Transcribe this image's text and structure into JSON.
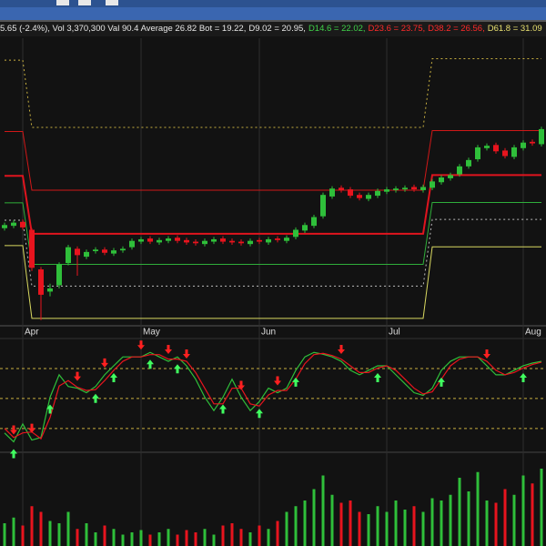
{
  "header": {
    "segments": [
      {
        "text": "5.65 (-2.4%), Vol 3,370,300 Val 90.4 Average 26.82 Bot = 19.22,",
        "color": "#e6e6e6"
      },
      {
        "text": "D9.02 = 20.95,",
        "color": "#e6e6e6"
      },
      {
        "text": "D14.6 = 22.02,",
        "color": "#3fd24a"
      },
      {
        "text": "D23.6 = 23.75,",
        "color": "#ff2a2a"
      },
      {
        "text": "D38.2 = 26.56,",
        "color": "#ff2a2a"
      },
      {
        "text": "D61.8 = 31.09",
        "color": "#e8e070"
      }
    ]
  },
  "chart_data": [
    {
      "type": "candlestick",
      "categories": [
        null,
        null,
        "Apr",
        null,
        null,
        null,
        null,
        null,
        null,
        null,
        null,
        null,
        null,
        null,
        null,
        "May",
        null,
        null,
        null,
        null,
        null,
        null,
        null,
        null,
        null,
        null,
        null,
        null,
        "Jun",
        null,
        null,
        null,
        null,
        null,
        null,
        null,
        null,
        null,
        null,
        null,
        null,
        null,
        "Jul",
        null,
        null,
        null,
        null,
        null,
        null,
        null,
        null,
        null,
        null,
        null,
        null,
        null,
        null,
        "Aug",
        null,
        null
      ],
      "open": [
        20.4,
        20.55,
        20.8,
        20.3,
        17.8,
        16.4,
        16.8,
        18.2,
        19.1,
        18.6,
        18.95,
        19.05,
        18.8,
        19.0,
        19.2,
        19.55,
        19.75,
        19.5,
        19.6,
        19.8,
        19.65,
        19.55,
        19.4,
        19.55,
        19.75,
        19.6,
        19.55,
        19.4,
        19.65,
        19.5,
        19.75,
        19.6,
        19.85,
        20.25,
        20.55,
        21.15,
        22.4,
        22.95,
        22.85,
        22.5,
        22.25,
        22.45,
        22.7,
        22.8,
        22.85,
        23.0,
        22.8,
        22.95,
        23.3,
        23.55,
        23.8,
        24.3,
        24.75,
        25.45,
        25.65,
        25.3,
        24.9,
        25.45,
        25.85,
        25.7
      ],
      "high": [
        20.75,
        20.9,
        20.95,
        20.4,
        17.95,
        16.9,
        18.25,
        19.35,
        19.25,
        19.05,
        19.2,
        19.2,
        19.15,
        19.25,
        19.75,
        19.85,
        19.9,
        19.8,
        19.9,
        19.95,
        19.8,
        19.7,
        19.75,
        19.85,
        19.9,
        19.75,
        19.7,
        19.75,
        19.8,
        19.85,
        19.9,
        19.95,
        20.45,
        20.75,
        21.25,
        22.65,
        23.05,
        23.1,
        23.0,
        22.65,
        22.65,
        22.9,
        23.0,
        23.05,
        23.1,
        23.15,
        23.15,
        23.5,
        23.75,
        23.9,
        24.45,
        24.85,
        25.65,
        25.75,
        25.8,
        25.45,
        25.65,
        25.95,
        26.0,
        26.8
      ],
      "low": [
        20.25,
        20.4,
        20.3,
        17.7,
        14.6,
        16.1,
        16.6,
        18.05,
        17.4,
        18.45,
        18.8,
        18.7,
        18.65,
        18.85,
        19.05,
        19.4,
        19.4,
        19.35,
        19.45,
        19.45,
        19.35,
        19.3,
        19.25,
        19.4,
        19.4,
        19.35,
        19.3,
        19.25,
        19.4,
        19.35,
        19.5,
        19.45,
        19.7,
        20.1,
        20.4,
        21.0,
        22.25,
        22.65,
        22.3,
        22.15,
        22.1,
        22.3,
        22.55,
        22.65,
        22.7,
        22.7,
        22.65,
        22.8,
        23.15,
        23.4,
        23.65,
        24.15,
        24.6,
        25.3,
        25.1,
        24.8,
        24.75,
        25.3,
        25.6,
        25.55
      ],
      "close": [
        20.6,
        20.75,
        20.45,
        17.9,
        16.2,
        16.6,
        18.1,
        19.2,
        18.7,
        18.9,
        19.05,
        18.85,
        19.0,
        19.1,
        19.6,
        19.7,
        19.55,
        19.65,
        19.75,
        19.6,
        19.5,
        19.45,
        19.6,
        19.7,
        19.55,
        19.5,
        19.45,
        19.6,
        19.55,
        19.7,
        19.65,
        19.8,
        20.3,
        20.6,
        21.1,
        22.5,
        22.9,
        22.8,
        22.45,
        22.3,
        22.5,
        22.75,
        22.85,
        22.9,
        22.95,
        22.85,
        23.0,
        23.35,
        23.6,
        23.75,
        24.3,
        24.7,
        25.5,
        25.6,
        25.25,
        24.95,
        25.5,
        25.8,
        25.75,
        26.65
      ],
      "up_color": "#2fbf3a",
      "down_color": "#e8141e",
      "ylim": [
        14.3,
        32.5
      ],
      "bands": [
        {
          "color": "#d8d860",
          "width": 1,
          "dash": null,
          "values": [
            19.3,
            19.3,
            19.3,
            14.71,
            14.71,
            14.71,
            14.71,
            14.71,
            14.71,
            14.71,
            14.71,
            14.71,
            14.71,
            14.71,
            14.71,
            14.71,
            14.71,
            14.71,
            14.71,
            14.71,
            14.71,
            14.71,
            14.71,
            14.71,
            14.71,
            14.71,
            14.71,
            14.71,
            14.71,
            14.71,
            14.71,
            14.71,
            14.71,
            14.71,
            14.71,
            14.71,
            14.71,
            14.71,
            14.71,
            14.71,
            14.71,
            14.71,
            14.71,
            14.71,
            14.71,
            14.71,
            14.71,
            19.22,
            19.22,
            19.22,
            19.22,
            19.22,
            19.22,
            19.22,
            19.22,
            19.22,
            19.22,
            19.22,
            19.22,
            19.22
          ]
        },
        {
          "color": "#bdbdbd",
          "width": 1,
          "dash": "2 3",
          "values": [
            20.9,
            20.9,
            20.9,
            16.75,
            16.75,
            16.75,
            16.75,
            16.75,
            16.75,
            16.75,
            16.75,
            16.75,
            16.75,
            16.75,
            16.75,
            16.75,
            16.75,
            16.75,
            16.75,
            16.75,
            16.75,
            16.75,
            16.75,
            16.75,
            16.75,
            16.75,
            16.75,
            16.75,
            16.75,
            16.75,
            16.75,
            16.75,
            16.75,
            16.75,
            16.75,
            16.75,
            16.75,
            16.75,
            16.75,
            16.75,
            16.75,
            16.75,
            16.75,
            16.75,
            16.75,
            16.75,
            16.75,
            20.95,
            20.95,
            20.95,
            20.95,
            20.95,
            20.95,
            20.95,
            20.95,
            20.95,
            20.95,
            20.95,
            20.95,
            20.95
          ]
        },
        {
          "color": "#2fae3a",
          "width": 1,
          "dash": null,
          "values": [
            22.0,
            22.0,
            22.0,
            18.12,
            18.12,
            18.12,
            18.12,
            18.12,
            18.12,
            18.12,
            18.12,
            18.12,
            18.12,
            18.12,
            18.12,
            18.12,
            18.12,
            18.12,
            18.12,
            18.12,
            18.12,
            18.12,
            18.12,
            18.12,
            18.12,
            18.12,
            18.12,
            18.12,
            18.12,
            18.12,
            18.12,
            18.12,
            18.12,
            18.12,
            18.12,
            18.12,
            18.12,
            18.12,
            18.12,
            18.12,
            18.12,
            18.12,
            18.12,
            18.12,
            18.12,
            18.12,
            18.12,
            22.02,
            22.02,
            22.02,
            22.02,
            22.02,
            22.02,
            22.02,
            22.02,
            22.02,
            22.02,
            22.02,
            22.02,
            22.02
          ]
        },
        {
          "color": "#e0141e",
          "width": 2,
          "dash": null,
          "values": [
            23.7,
            23.7,
            23.7,
            20.05,
            20.05,
            20.05,
            20.05,
            20.05,
            20.05,
            20.05,
            20.05,
            20.05,
            20.05,
            20.05,
            20.05,
            20.05,
            20.05,
            20.05,
            20.05,
            20.05,
            20.05,
            20.05,
            20.05,
            20.05,
            20.05,
            20.05,
            20.05,
            20.05,
            20.05,
            20.05,
            20.05,
            20.05,
            20.05,
            20.05,
            20.05,
            20.05,
            20.05,
            20.05,
            20.05,
            20.05,
            20.05,
            20.05,
            20.05,
            20.05,
            20.05,
            20.05,
            20.05,
            23.75,
            23.75,
            23.75,
            23.75,
            23.75,
            23.75,
            23.75,
            23.75,
            23.75,
            23.75,
            23.75,
            23.75,
            23.75
          ]
        },
        {
          "color": "#d01818",
          "width": 1,
          "dash": null,
          "values": [
            26.5,
            26.5,
            26.5,
            22.8,
            22.8,
            22.8,
            22.8,
            22.8,
            22.8,
            22.8,
            22.8,
            22.8,
            22.8,
            22.8,
            22.8,
            22.8,
            22.8,
            22.8,
            22.8,
            22.8,
            22.8,
            22.8,
            22.8,
            22.8,
            22.8,
            22.8,
            22.8,
            22.8,
            22.8,
            22.8,
            22.8,
            22.8,
            22.8,
            22.8,
            22.8,
            22.8,
            22.8,
            22.8,
            22.8,
            22.8,
            22.8,
            22.8,
            22.8,
            22.8,
            22.8,
            22.8,
            22.8,
            26.56,
            26.56,
            26.56,
            26.56,
            26.56,
            26.56,
            26.56,
            26.56,
            26.56,
            26.56,
            26.56,
            26.56,
            26.56
          ]
        },
        {
          "color": "#c8b040",
          "width": 1,
          "dash": "2 3",
          "values": [
            31.0,
            31.0,
            31.0,
            26.76,
            26.76,
            26.76,
            26.76,
            26.76,
            26.76,
            26.76,
            26.76,
            26.76,
            26.76,
            26.76,
            26.76,
            26.76,
            26.76,
            26.76,
            26.76,
            26.76,
            26.76,
            26.76,
            26.76,
            26.76,
            26.76,
            26.76,
            26.76,
            26.76,
            26.76,
            26.76,
            26.76,
            26.76,
            26.76,
            26.76,
            26.76,
            26.76,
            26.76,
            26.76,
            26.76,
            26.76,
            26.76,
            26.76,
            26.76,
            26.76,
            26.76,
            26.76,
            26.76,
            31.09,
            31.09,
            31.09,
            31.09,
            31.09,
            31.09,
            31.09,
            31.09,
            31.09,
            31.09,
            31.09,
            31.09,
            31.09
          ]
        }
      ]
    },
    {
      "type": "line",
      "ylim": [
        -2,
        110
      ],
      "reference_lines": [
        20,
        50,
        80
      ],
      "reference_color": "#c8b040",
      "series": [
        {
          "color": "#2fbf3a",
          "values": [
            15.5,
            6.6,
            24.5,
            8.4,
            11.0,
            51.3,
            73.7,
            62.0,
            60.3,
            55.8,
            62.0,
            73.7,
            82.7,
            91.6,
            91.6,
            91.6,
            96.1,
            91.6,
            87.2,
            91.6,
            82.7,
            69.3,
            51.3,
            37.9,
            51.3,
            69.3,
            51.3,
            37.9,
            46.9,
            60.3,
            55.8,
            60.3,
            78.2,
            91.6,
            96.1,
            94.3,
            91.6,
            87.2,
            78.2,
            73.7,
            78.2,
            82.7,
            82.7,
            73.7,
            64.8,
            55.8,
            53.1,
            60.3,
            78.2,
            87.2,
            91.6,
            91.6,
            91.6,
            82.7,
            73.7,
            73.7,
            78.2,
            82.7,
            85.4,
            87.2
          ]
        },
        {
          "color": "#e8141e",
          "values": [
            20,
            11,
            15.6,
            16.5,
            9.7,
            31,
            62.5,
            67.9,
            61.2,
            58,
            58.9,
            67.9,
            78.2,
            87.2,
            91.6,
            91.6,
            93.9,
            93.9,
            89.4,
            89.4,
            87.2,
            76,
            60.3,
            44.6,
            44.6,
            60.3,
            60.3,
            44.6,
            42.4,
            53.6,
            58,
            58,
            69.3,
            84.9,
            93.9,
            95.2,
            93,
            89.4,
            82.7,
            76,
            76,
            80.5,
            82.7,
            78.2,
            69.3,
            60.3,
            54.5,
            56.7,
            69.3,
            82.7,
            89.4,
            91.6,
            91.6,
            87.2,
            78.2,
            73.7,
            76,
            80.5,
            84,
            86.3
          ]
        }
      ],
      "sell_signals": [
        1,
        3,
        8,
        11,
        15,
        18,
        20,
        26,
        30,
        37,
        53
      ],
      "buy_signals": [
        1,
        5,
        10,
        12,
        16,
        19,
        24,
        28,
        32,
        41,
        48,
        57
      ],
      "sell_color": "#ff2020",
      "buy_color": "#40ff60"
    },
    {
      "type": "bar",
      "ylim": [
        0,
        6000000
      ],
      "values": [
        1500000,
        1875000,
        1350000,
        2625000,
        2250000,
        1650000,
        1500000,
        2250000,
        1125000,
        1500000,
        900000,
        1350000,
        1125000,
        750000,
        900000,
        1050000,
        750000,
        900000,
        1125000,
        750000,
        1050000,
        900000,
        1125000,
        750000,
        1350000,
        1500000,
        1125000,
        900000,
        1350000,
        1125000,
        1650000,
        2250000,
        2625000,
        3000000,
        3750000,
        4650000,
        3375000,
        2850000,
        3000000,
        2250000,
        2100000,
        2625000,
        2250000,
        3000000,
        2400000,
        2625000,
        2250000,
        3150000,
        3000000,
        3375000,
        4500000,
        3600000,
        4875000,
        3000000,
        2850000,
        3750000,
        3375000,
        4650000,
        4125000,
        5100000
      ]
    }
  ]
}
